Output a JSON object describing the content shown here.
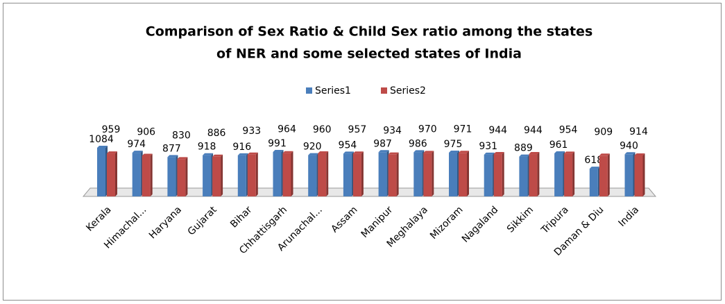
{
  "chart_data": {
    "type": "bar",
    "title": "Comparison of Sex Ratio & Child Sex ratio among the states of NER and some selected states of India",
    "categories": [
      "Kerala",
      "Himachal...",
      "Haryana",
      "Gujarat",
      "Bihar",
      "Chhattisgarh",
      "Arunachal...",
      "Assam",
      "Manipur",
      "Meghalaya",
      "Mizoram",
      "Nagaland",
      "Sikkim",
      "Tripura",
      "Daman & Diu",
      "India"
    ],
    "series": [
      {
        "name": "Series1",
        "color": "#4a7ebb",
        "values": [
          1084,
          974,
          877,
          918,
          916,
          991,
          920,
          954,
          987,
          986,
          975,
          931,
          889,
          961,
          618,
          940
        ]
      },
      {
        "name": "Series2",
        "color": "#be4b48",
        "values": [
          959,
          906,
          830,
          886,
          933,
          964,
          960,
          957,
          934,
          970,
          971,
          944,
          944,
          954,
          909,
          914
        ]
      }
    ],
    "legend": "top"
  }
}
